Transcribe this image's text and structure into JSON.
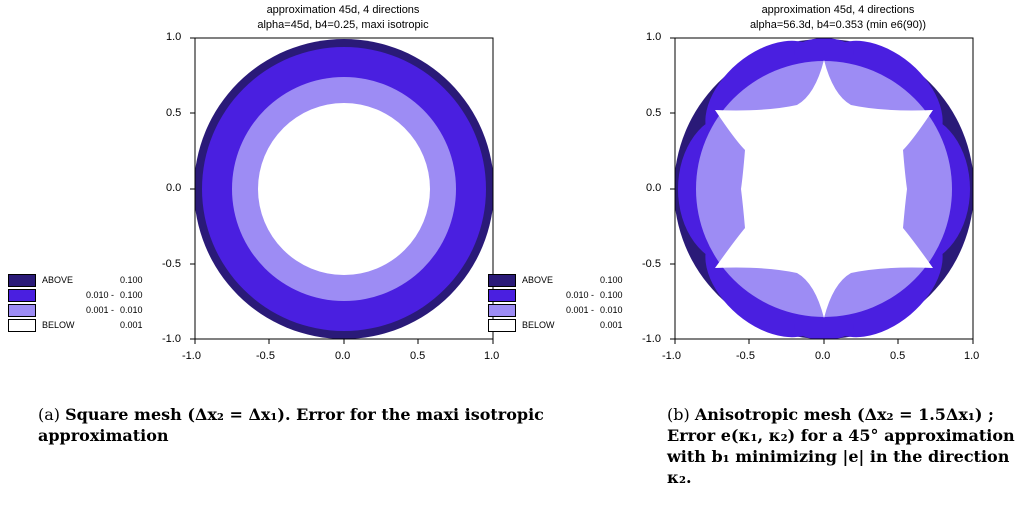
{
  "figures": [
    {
      "title_line1": "approximation 45d, 4 directions",
      "title_line2": "alpha=45d, b4=0.25, maxi isotropic",
      "xticks": [
        "-1.0",
        "-0.5",
        "0.0",
        "0.5",
        "1.0"
      ],
      "yticks": [
        "1.0",
        "0.5",
        "0.0",
        "-0.5",
        "-1.0"
      ],
      "legend": [
        {
          "label": "ABOVE",
          "low": "",
          "high": "0.100",
          "color": "#2a1a78"
        },
        {
          "label": "",
          "low": "0.010 -",
          "high": "0.100",
          "color": "#4a1fe0"
        },
        {
          "label": "",
          "low": "0.001 -",
          "high": "0.010",
          "color": "#9d8cf4"
        },
        {
          "label": "BELOW",
          "low": "",
          "high": "0.001",
          "color": "#ffffff"
        }
      ],
      "caption_label": "(a)",
      "caption_text": "Square mesh (Δx₂ = Δx₁). Error for the maxi isotropic approximation"
    },
    {
      "title_line1": "approximation 45d, 4 directions",
      "title_line2": "alpha=56.3d, b4=0.353 (min e6(90))",
      "xticks": [
        "-1.0",
        "-0.5",
        "0.0",
        "0.5",
        "1.0"
      ],
      "yticks": [
        "1.0",
        "0.5",
        "0.0",
        "-0.5",
        "-1.0"
      ],
      "legend": [
        {
          "label": "ABOVE",
          "low": "",
          "high": "0.100",
          "color": "#2a1a78"
        },
        {
          "label": "",
          "low": "0.010 -",
          "high": "0.100",
          "color": "#4a1fe0"
        },
        {
          "label": "",
          "low": "0.001 -",
          "high": "0.010",
          "color": "#9d8cf4"
        },
        {
          "label": "BELOW",
          "low": "",
          "high": "0.001",
          "color": "#ffffff"
        }
      ],
      "caption_label": "(b)",
      "caption_text": "Anisotropic mesh (Δx₂ = 1.5Δx₁) ; Error e(κ₁, κ₂) for a 45° approximation with b₁ minimizing |e| in the direction κ₂."
    }
  ]
}
